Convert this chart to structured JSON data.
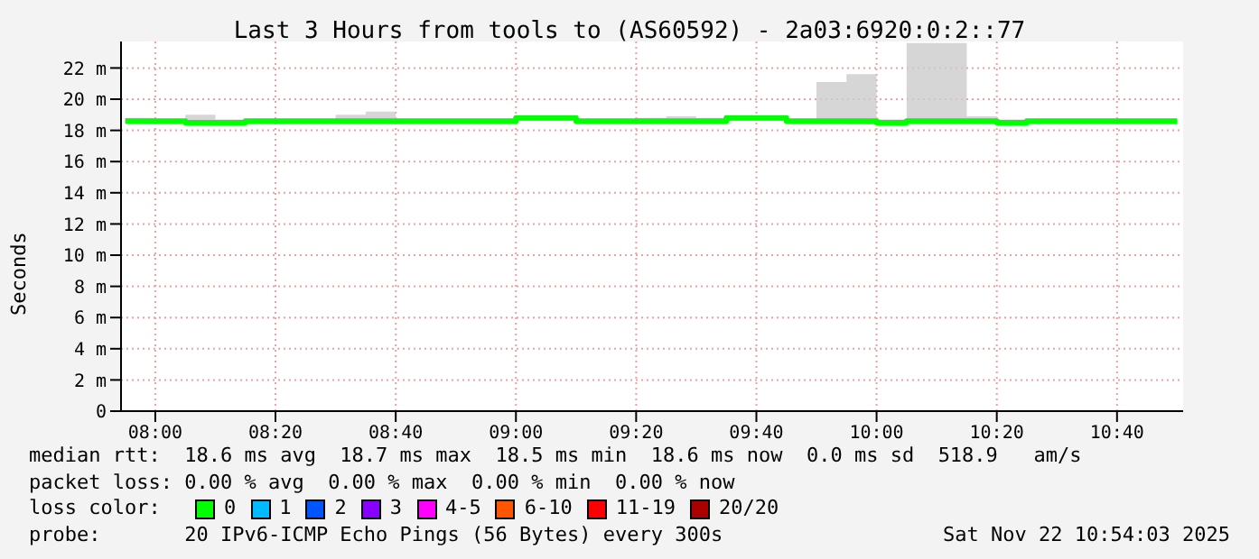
{
  "chart_data": {
    "type": "step",
    "title": "Last 3 Hours from tools to (AS60592) - 2a03:6920:0:2::77",
    "ylabel": "Seconds",
    "x": [
      7.9167,
      8,
      8.0833,
      8.1667,
      8.25,
      8.3333,
      8.4167,
      8.5,
      8.5833,
      8.6667,
      8.75,
      8.8333,
      8.9167,
      9,
      9.0833,
      9.1667,
      9.25,
      9.3333,
      9.4167,
      9.5,
      9.5833,
      9.6667,
      9.75,
      9.8333,
      9.9167,
      10,
      10.0833,
      10.1667,
      10.25,
      10.3333,
      10.4167,
      10.5,
      10.5833,
      10.6667,
      10.75,
      10.8333
    ],
    "series": [
      {
        "color": "#00ff00",
        "values": [
          18.6,
          18.6,
          18.5,
          18.5,
          18.6,
          18.6,
          18.6,
          18.6,
          18.6,
          18.6,
          18.6,
          18.6,
          18.6,
          18.8,
          18.8,
          18.6,
          18.6,
          18.6,
          18.6,
          18.6,
          18.8,
          18.8,
          18.6,
          18.6,
          18.6,
          18.5,
          18.6,
          18.6,
          18.6,
          18.5,
          18.6,
          18.6,
          18.6,
          18.6,
          18.6,
          18.6
        ],
        "lower": [
          18.5,
          18.5,
          18.4,
          18.4,
          18.5,
          18.5,
          18.5,
          18.5,
          18.5,
          18.5,
          18.5,
          18.5,
          18.5,
          18.6,
          18.6,
          18.5,
          18.5,
          18.5,
          18.5,
          18.5,
          18.6,
          18.6,
          18.5,
          18.5,
          18.4,
          18.4,
          18.5,
          18.5,
          18.5,
          18.4,
          18.5,
          18.5,
          18.5,
          18.5,
          18.5,
          18.5
        ],
        "upper": [
          18.8,
          18.7,
          19.0,
          18.7,
          18.7,
          18.7,
          18.7,
          19.0,
          19.2,
          18.7,
          18.7,
          18.7,
          18.7,
          18.8,
          18.8,
          18.7,
          18.7,
          18.8,
          18.9,
          18.8,
          18.9,
          18.9,
          18.7,
          21.1,
          21.6,
          18.7,
          23.6,
          23.6,
          18.9,
          18.7,
          18.7,
          18.7,
          18.7,
          18.7,
          18.7,
          18.7
        ]
      }
    ],
    "xlim": [
      7.905,
      10.85
    ],
    "xticks": [
      {
        "value": 8,
        "label": "08:00"
      },
      {
        "value": 8.3333,
        "label": "08:20"
      },
      {
        "value": 8.6667,
        "label": "08:40"
      },
      {
        "value": 9,
        "label": "09:00"
      },
      {
        "value": 9.3333,
        "label": "09:20"
      },
      {
        "value": 9.6667,
        "label": "09:40"
      },
      {
        "value": 10,
        "label": "10:00"
      },
      {
        "value": 10.3333,
        "label": "10:20"
      },
      {
        "value": 10.6667,
        "label": "10:40"
      }
    ],
    "ylim": [
      0,
      23.7
    ],
    "yticks": [
      0,
      {
        "value": 2,
        "label": "2 m"
      },
      {
        "value": 4,
        "label": "4 m"
      },
      {
        "value": 6,
        "label": "6 m"
      },
      {
        "value": 8,
        "label": "8 m"
      },
      {
        "value": 10,
        "label": "10 m"
      },
      {
        "value": 12,
        "label": "12 m"
      },
      {
        "value": 14,
        "label": "14 m"
      },
      {
        "value": 16,
        "label": "16 m"
      },
      {
        "value": 18,
        "label": "18 m"
      },
      {
        "value": 20,
        "label": "20 m"
      },
      {
        "value": 22,
        "label": "22 m"
      }
    ],
    "grid": true,
    "annotations": [
      "median rtt:  18.6 ms avg  18.7 ms max  18.5 ms min  18.6 ms now  0.0 ms sd  518.9   am/s",
      "packet loss: 0.00 % avg  0.00 % max  0.00 % min  0.00 % now",
      "loss color:",
      "0",
      "1",
      "2",
      "3",
      "4-5",
      "6-10",
      "11-19",
      "20/20",
      "probe:       20 IPv6-ICMP Echo Pings (56 Bytes) every 300s",
      "Sat Nov 22 10:54:03 2025"
    ]
  }
}
